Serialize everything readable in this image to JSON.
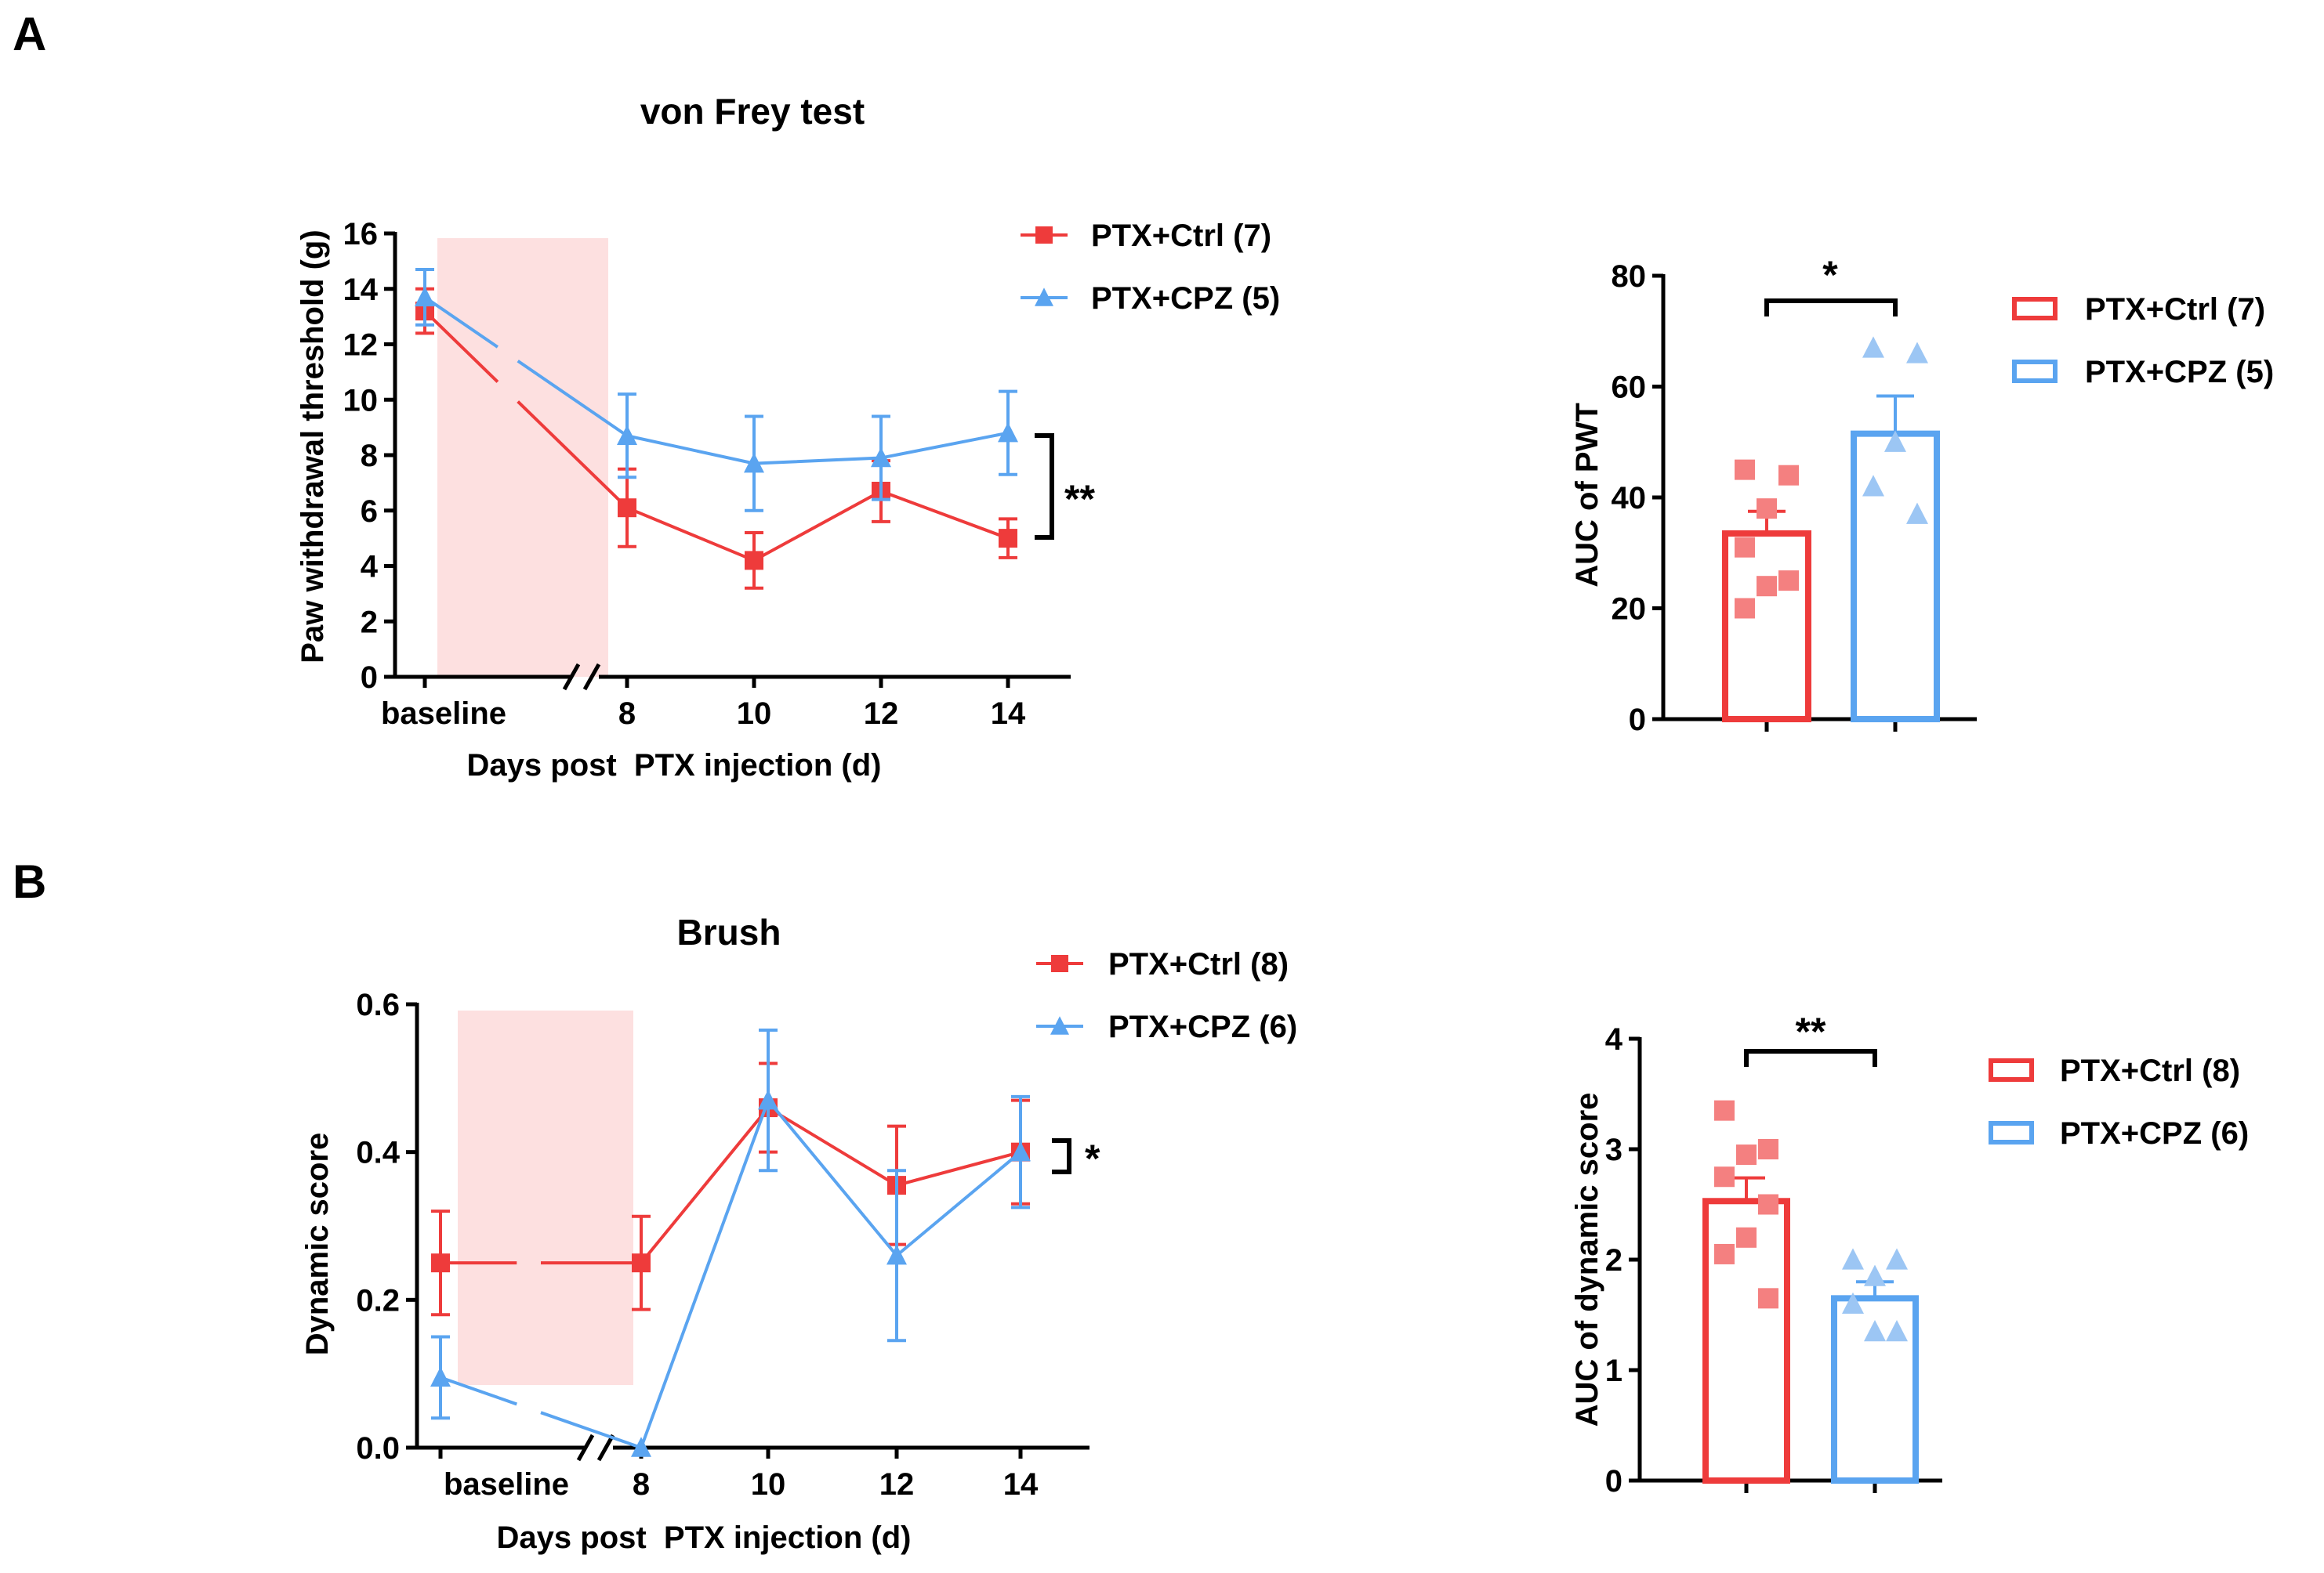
{
  "colors": {
    "ctrl": "#EE3B3B",
    "cpz": "#5AA4F0",
    "ctrl_fill": "#F48080",
    "cpz_fill": "#9CC6F4",
    "treatment_band": "#FDE0E0"
  },
  "panels": {
    "a_label": "A",
    "b_label": "B"
  },
  "chart_data": [
    {
      "id": "A-line",
      "type": "line",
      "title": "von Frey test",
      "xlabel": "Days post  PTX injection (d)",
      "ylabel": "Paw withdrawal threshold (g)",
      "ylim": [
        0,
        16
      ],
      "yticks": [
        "0",
        "2",
        "4",
        "6",
        "8",
        "10",
        "12",
        "14",
        "16"
      ],
      "categories": [
        "baseline",
        "8",
        "10",
        "12",
        "14"
      ],
      "series": [
        {
          "name": "PTX+Ctrl (7)",
          "key": "ctrl",
          "values": [
            13.2,
            6.1,
            4.2,
            6.7,
            5.0
          ],
          "errors": [
            0.8,
            1.4,
            1.0,
            1.1,
            0.7
          ]
        },
        {
          "name": "PTX+CPZ (5)",
          "key": "cpz",
          "values": [
            13.7,
            8.7,
            7.7,
            7.9,
            8.8
          ],
          "errors": [
            1.0,
            1.5,
            1.7,
            1.5,
            1.5
          ]
        }
      ],
      "significance": "**"
    },
    {
      "id": "A-bar",
      "type": "bar",
      "ylabel": "AUC of PWT",
      "ylim": [
        0,
        80
      ],
      "yticks": [
        "0",
        "20",
        "40",
        "60",
        "80"
      ],
      "series": [
        {
          "name": "PTX+Ctrl (7)",
          "key": "ctrl",
          "mean": 33.5,
          "sem": 4.0,
          "points": [
            45,
            44,
            38,
            31,
            25,
            24,
            20
          ]
        },
        {
          "name": "PTX+CPZ (5)",
          "key": "cpz",
          "mean": 51.5,
          "sem": 6.8,
          "points": [
            67,
            66,
            50,
            42,
            37
          ]
        }
      ],
      "significance": "*"
    },
    {
      "id": "B-line",
      "type": "line",
      "title": "Brush",
      "xlabel": "Days post  PTX injection (d)",
      "ylabel": "Dynamic score",
      "ylim": [
        0,
        0.6
      ],
      "yticks": [
        "0.0",
        "0.2",
        "0.4",
        "0.6"
      ],
      "categories": [
        "baseline",
        "8",
        "10",
        "12",
        "14"
      ],
      "series": [
        {
          "name": "PTX+Ctrl (8)",
          "key": "ctrl",
          "values": [
            0.25,
            0.25,
            0.46,
            0.355,
            0.4
          ],
          "errors": [
            0.07,
            0.063,
            0.06,
            0.08,
            0.07
          ]
        },
        {
          "name": "PTX+CPZ (6)",
          "key": "cpz",
          "values": [
            0.095,
            0.0,
            0.47,
            0.26,
            0.4
          ],
          "errors": [
            0.055,
            0.0,
            0.095,
            0.115,
            0.075
          ]
        }
      ],
      "significance": "*"
    },
    {
      "id": "B-bar",
      "type": "bar",
      "ylabel": "AUC of dynamic score",
      "ylim": [
        0,
        4
      ],
      "yticks": [
        "0",
        "1",
        "2",
        "3",
        "4"
      ],
      "series": [
        {
          "name": "PTX+Ctrl (8)",
          "key": "ctrl",
          "mean": 2.53,
          "sem": 0.21,
          "points": [
            3.35,
            3.0,
            2.95,
            2.75,
            2.5,
            2.2,
            2.05,
            1.65
          ]
        },
        {
          "name": "PTX+CPZ (6)",
          "key": "cpz",
          "mean": 1.65,
          "sem": 0.15,
          "points": [
            2.0,
            2.0,
            1.85,
            1.6,
            1.35,
            1.35
          ]
        }
      ],
      "significance": "**"
    }
  ]
}
